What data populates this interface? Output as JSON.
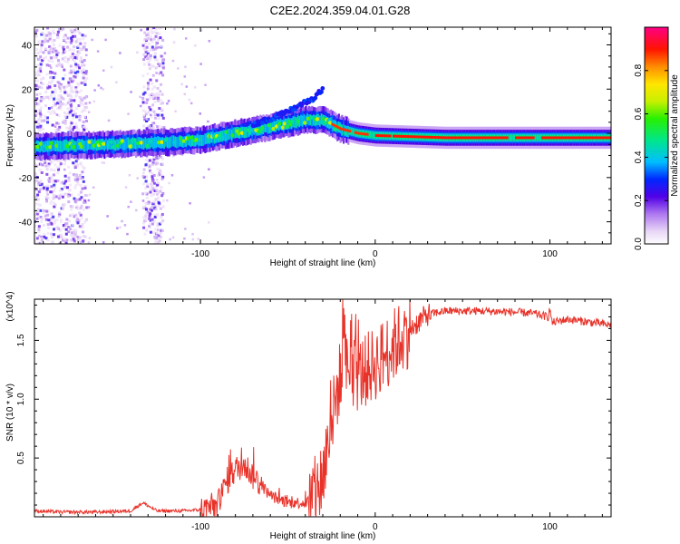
{
  "title": "C2E2.2024.359.04.01.G28",
  "chart_data": [
    {
      "type": "heatmap",
      "title": "",
      "xlabel": "Height of straight line (km)",
      "ylabel": "Frequency (Hz)",
      "xlim": [
        -195,
        135
      ],
      "ylim": [
        -50,
        48
      ],
      "xticks": [
        -100,
        0,
        100
      ],
      "yticks": [
        -40,
        -20,
        0,
        20,
        40
      ],
      "colorbar": {
        "label": "Normalized spectral amplitude",
        "range": [
          0.0,
          1.0
        ],
        "ticks": [
          0.0,
          0.2,
          0.4,
          0.6,
          0.8
        ]
      },
      "ridge": {
        "x": [
          -195,
          -150,
          -120,
          -100,
          -80,
          -60,
          -40,
          -30,
          -20,
          -10,
          0,
          20,
          40,
          60,
          80,
          100,
          120,
          135
        ],
        "y": [
          -6,
          -5,
          -4,
          -3,
          0,
          3,
          6,
          6,
          2,
          0,
          -1,
          -1.5,
          -2,
          -2,
          -2,
          -2,
          -2,
          -2
        ]
      },
      "branch": {
        "x": [
          -70,
          -55,
          -45,
          -35,
          -30
        ],
        "y": [
          4,
          8,
          12,
          16,
          20
        ]
      },
      "vertical_bands": [
        {
          "x_center": -180,
          "width": 30
        },
        {
          "x_center": -127,
          "width": 12
        }
      ]
    },
    {
      "type": "line",
      "title": "",
      "xlabel": "Height of straight line (km)",
      "ylabel": "SNR (10 * v/v)",
      "y_multiplier": "(x10^4)",
      "xlim": [
        -195,
        135
      ],
      "ylim": [
        0,
        1.85
      ],
      "xticks": [
        -100,
        0,
        100
      ],
      "yticks": [
        0.5,
        1.0,
        1.5
      ],
      "series": [
        {
          "color": "#e8332a",
          "x": [
            -195,
            -180,
            -160,
            -140,
            -133,
            -125,
            -110,
            -100,
            -90,
            -85,
            -80,
            -75,
            -70,
            -60,
            -50,
            -40,
            -35,
            -30,
            -25,
            -20,
            -15,
            -10,
            -5,
            0,
            10,
            20,
            30,
            40,
            60,
            80,
            90,
            99,
            100,
            101,
            110,
            120,
            135
          ],
          "y": [
            0.05,
            0.04,
            0.04,
            0.05,
            0.12,
            0.05,
            0.05,
            0.06,
            0.1,
            0.3,
            0.4,
            0.45,
            0.35,
            0.18,
            0.12,
            0.12,
            0.15,
            0.35,
            0.8,
            1.2,
            1.3,
            1.2,
            1.25,
            1.3,
            1.45,
            1.6,
            1.72,
            1.75,
            1.75,
            1.74,
            1.73,
            1.7,
            1.78,
            1.65,
            1.68,
            1.66,
            1.63
          ]
        }
      ]
    }
  ]
}
